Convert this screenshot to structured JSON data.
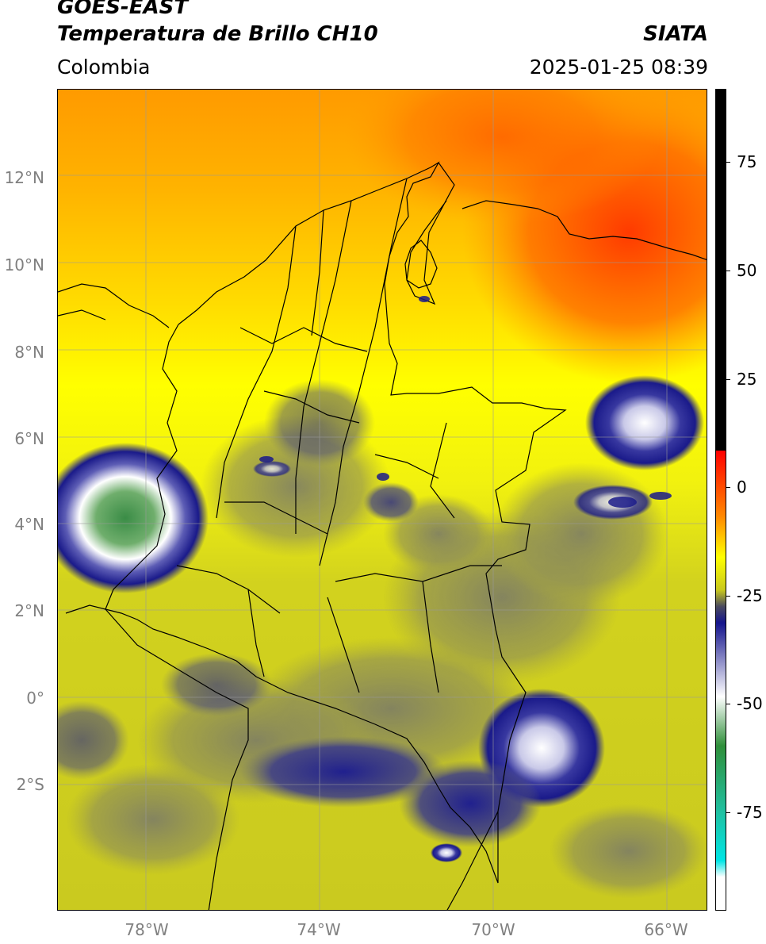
{
  "header": {
    "satellite": "GOES-EAST",
    "product": "Temperatura de Brillo CH10",
    "agency": "SIATA",
    "region": "Colombia",
    "timestamp": "2025-01-25 08:39"
  },
  "map": {
    "lat_labels": [
      "12°N",
      "10°N",
      "8°N",
      "6°N",
      "4°N",
      "2°N",
      "0°",
      "2°S"
    ],
    "lon_labels": [
      "78°W",
      "74°W",
      "70°W",
      "66°W"
    ],
    "colors": {
      "warm_orange": "#ff8c00",
      "hot_red": "#ff3300",
      "yellow": "#ffff00",
      "olive": "#b9b927",
      "gray": "#7a7a62",
      "navy": "#1a1a8a",
      "white": "#ffffff",
      "green": "#2f8f3a"
    }
  },
  "colorbar": {
    "labels": [
      "75",
      "50",
      "25",
      "0",
      "-25",
      "-50",
      "-75"
    ],
    "colors": [
      "#000000",
      "#ff0000",
      "#ff8800",
      "#ffff00",
      "#c9c91d",
      "#4a4a5e",
      "#14148c",
      "#ffffff",
      "#2f8f3a",
      "#20c0a0",
      "#00e5e5"
    ]
  }
}
